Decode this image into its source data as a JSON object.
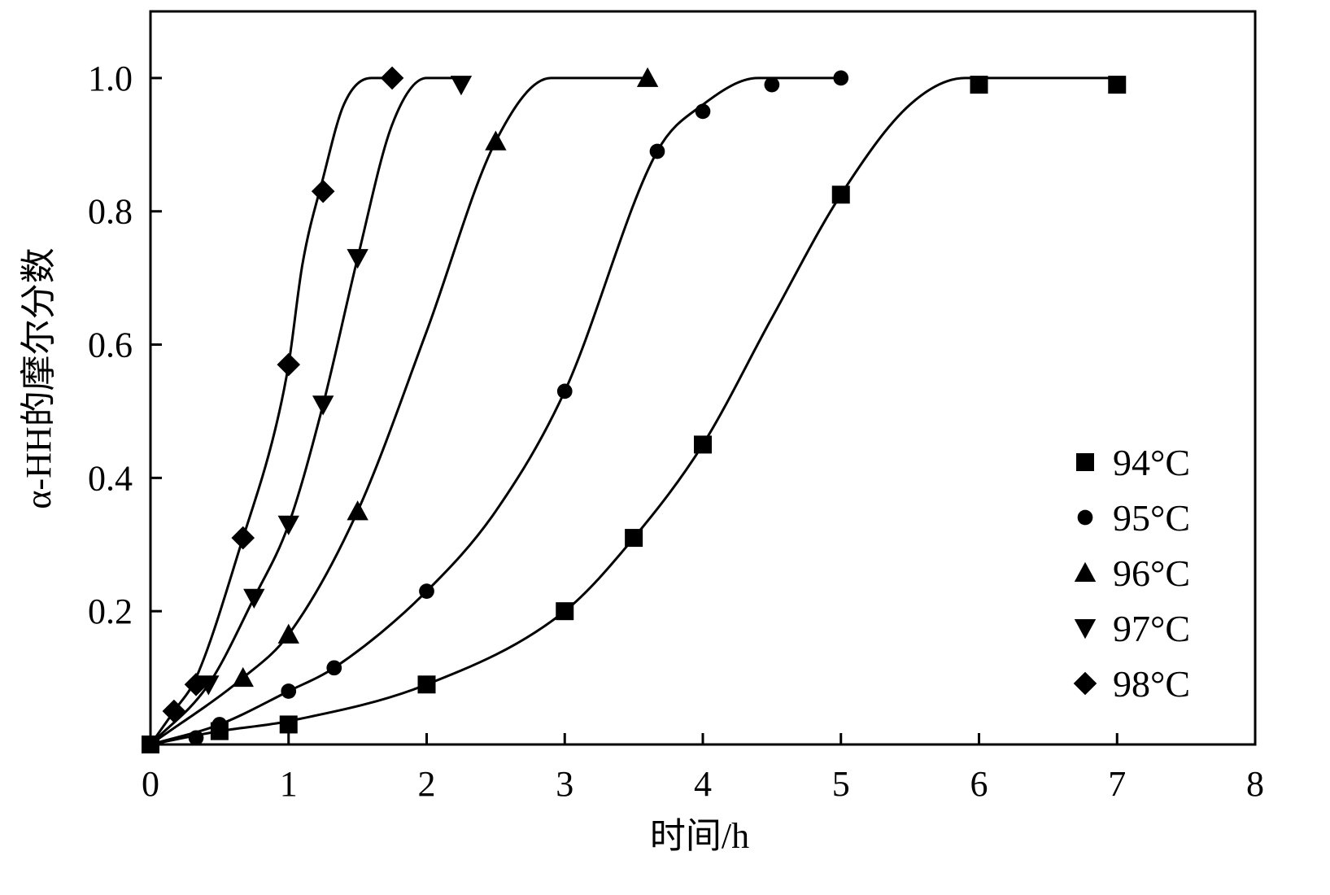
{
  "chart_data": {
    "type": "scatter",
    "xlabel": "时间/h",
    "ylabel": "α-HH的摩尔分数",
    "xlim": [
      0,
      8
    ],
    "ylim": [
      0,
      1.1
    ],
    "xticks": [
      0,
      1,
      2,
      3,
      4,
      5,
      6,
      7,
      8
    ],
    "xtick_labels": [
      "0",
      "1",
      "2",
      "3",
      "4",
      "5",
      "6",
      "7",
      "8"
    ],
    "yticks": [
      0.2,
      0.4,
      0.6,
      0.8,
      1.0
    ],
    "ytick_labels": [
      "0.2",
      "0.4",
      "0.6",
      "0.8",
      "1.0"
    ],
    "legend_position": "bottom-right",
    "grid": false,
    "series": [
      {
        "name": "94°C",
        "marker": "square",
        "points": [
          [
            0,
            0
          ],
          [
            0.5,
            0.02
          ],
          [
            1,
            0.03
          ],
          [
            2,
            0.09
          ],
          [
            3,
            0.2
          ],
          [
            3.5,
            0.31
          ],
          [
            4,
            0.45
          ],
          [
            5,
            0.825
          ],
          [
            6,
            0.99
          ],
          [
            7,
            0.99
          ]
        ],
        "fit": [
          [
            0,
            0
          ],
          [
            0.5,
            0.02
          ],
          [
            1,
            0.035
          ],
          [
            2,
            0.09
          ],
          [
            3,
            0.2
          ],
          [
            3.5,
            0.31
          ],
          [
            4,
            0.45
          ],
          [
            4.5,
            0.64
          ],
          [
            5,
            0.825
          ],
          [
            5.5,
            0.96
          ],
          [
            5.9,
            1.0
          ],
          [
            7,
            1.0
          ]
        ]
      },
      {
        "name": "95°C",
        "marker": "circle",
        "points": [
          [
            0.33,
            0.01
          ],
          [
            0.5,
            0.03
          ],
          [
            1,
            0.08
          ],
          [
            1.33,
            0.115
          ],
          [
            2,
            0.23
          ],
          [
            3,
            0.53
          ],
          [
            3.67,
            0.89
          ],
          [
            4,
            0.95
          ],
          [
            4.5,
            0.99
          ],
          [
            5,
            1.0
          ]
        ],
        "fit": [
          [
            0,
            0
          ],
          [
            0.5,
            0.03
          ],
          [
            1,
            0.08
          ],
          [
            1.33,
            0.115
          ],
          [
            2,
            0.23
          ],
          [
            2.5,
            0.35
          ],
          [
            3,
            0.53
          ],
          [
            3.67,
            0.89
          ],
          [
            4,
            0.96
          ],
          [
            4.4,
            1.0
          ],
          [
            5,
            1.0
          ]
        ]
      },
      {
        "name": "96°C",
        "marker": "triangle-up",
        "points": [
          [
            0.67,
            0.1
          ],
          [
            1,
            0.165
          ],
          [
            1.5,
            0.35
          ],
          [
            2.5,
            0.905
          ],
          [
            3.6,
            1.0
          ]
        ],
        "fit": [
          [
            0,
            0
          ],
          [
            0.67,
            0.1
          ],
          [
            1,
            0.165
          ],
          [
            1.5,
            0.35
          ],
          [
            2,
            0.62
          ],
          [
            2.5,
            0.905
          ],
          [
            2.9,
            1.0
          ],
          [
            3.6,
            1.0
          ]
        ]
      },
      {
        "name": "97°C",
        "marker": "triangle-down",
        "points": [
          [
            0.42,
            0.09
          ],
          [
            0.75,
            0.22
          ],
          [
            1,
            0.33
          ],
          [
            1.25,
            0.51
          ],
          [
            1.5,
            0.73
          ],
          [
            2.25,
            0.99
          ]
        ],
        "fit": [
          [
            0,
            0
          ],
          [
            0.42,
            0.09
          ],
          [
            0.75,
            0.22
          ],
          [
            1,
            0.33
          ],
          [
            1.25,
            0.51
          ],
          [
            1.5,
            0.73
          ],
          [
            1.75,
            0.93
          ],
          [
            2.0,
            1.0
          ],
          [
            2.25,
            1.0
          ]
        ]
      },
      {
        "name": "98°C",
        "marker": "diamond",
        "points": [
          [
            0.17,
            0.05
          ],
          [
            0.33,
            0.09
          ],
          [
            0.67,
            0.31
          ],
          [
            1,
            0.57
          ],
          [
            1.25,
            0.83
          ],
          [
            1.75,
            1.0
          ]
        ],
        "fit": [
          [
            0,
            0
          ],
          [
            0.17,
            0.05
          ],
          [
            0.33,
            0.1
          ],
          [
            0.67,
            0.31
          ],
          [
            0.9,
            0.47
          ],
          [
            1,
            0.57
          ],
          [
            1.1,
            0.72
          ],
          [
            1.25,
            0.85
          ],
          [
            1.4,
            0.96
          ],
          [
            1.6,
            1.0
          ],
          [
            1.75,
            1.0
          ]
        ]
      }
    ]
  }
}
